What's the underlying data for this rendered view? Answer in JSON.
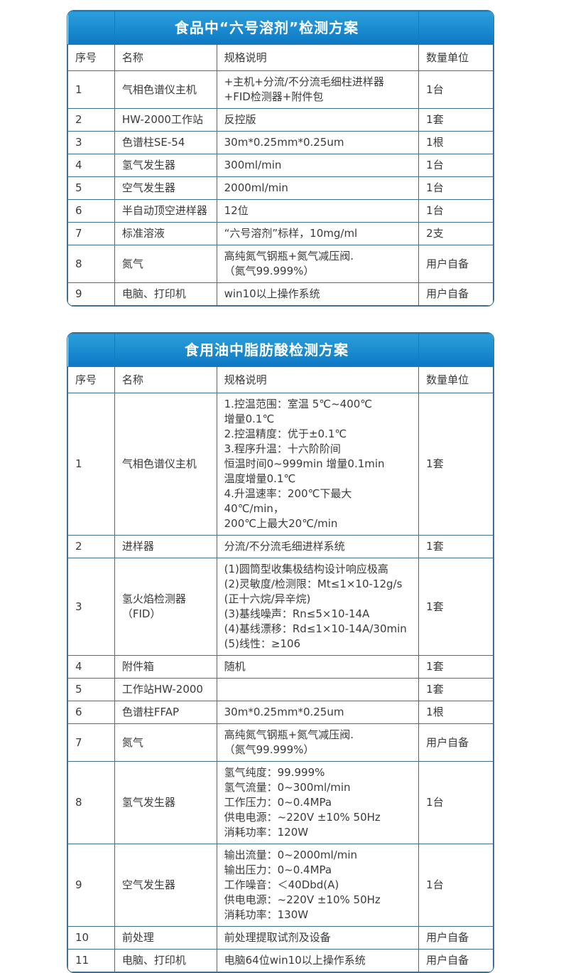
{
  "colors": {
    "header_blue_top": "#2b9fdc",
    "header_blue_bottom": "#0d78c4",
    "table_border": "#3c7191",
    "body_text": "#3a3a3a",
    "title_text": "#ffffff"
  },
  "tables": [
    {
      "title": "食品中“六号溶剂”检测方案",
      "columns": [
        "序号",
        "名称",
        "规格说明",
        "数量单位"
      ],
      "rows": [
        {
          "no": "1",
          "name": "气相色谱仪主机",
          "spec": "+主机+分流/不分流毛细柱进样器\n+FID检测器+附件包",
          "qty": "1台"
        },
        {
          "no": "2",
          "name": "HW-2000工作站",
          "spec": "反控版",
          "qty": "1套"
        },
        {
          "no": "3",
          "name": "色谱柱SE-54",
          "spec": "30m*0.25mm*0.25um",
          "qty": "1根"
        },
        {
          "no": "4",
          "name": "氢气发生器",
          "spec": "300ml/min",
          "qty": "1台"
        },
        {
          "no": "5",
          "name": "空气发生器",
          "spec": "2000ml/min",
          "qty": "1台"
        },
        {
          "no": "6",
          "name": "半自动顶空进样器",
          "spec": "12位",
          "qty": "1台"
        },
        {
          "no": "7",
          "name": "标准溶液",
          "spec": "“六号溶剂”标样，10mg/ml",
          "qty": "2支"
        },
        {
          "no": "8",
          "name": "氮气",
          "spec": "高纯氮气钢瓶+氮气减压阀.\n（氮气99.999%）",
          "qty": "用户自备"
        },
        {
          "no": "9",
          "name": "电脑、打印机",
          "spec": "win10以上操作系统",
          "qty": "用户自备"
        }
      ]
    },
    {
      "title": "食用油中脂肪酸检测方案",
      "columns": [
        "序号",
        "名称",
        "规格说明",
        "数量单位"
      ],
      "rows": [
        {
          "no": "1",
          "name": "气相色谱仪主机",
          "spec": "1.控温范围：室温 5℃~400℃\n增量0.1℃\n2.控温精度：优于±0.1℃\n3.程序升温：十六阶阶间\n恒温时间0~999min 增量0.1min\n温度增量0.1℃\n4.升温速率：200℃下最大40℃/min，\n200℃上最大20℃/min",
          "qty": "1套"
        },
        {
          "no": "2",
          "name": "进样器",
          "spec": "分流/不分流毛细进样系统",
          "qty": "1套"
        },
        {
          "no": "3",
          "name": "氢火焰检测器（FID）",
          "spec": "(1)圆筒型收集极结构设计响应极高\n(2)灵敏度/检测限：Mt≤1×10-12g/s\n(正十六烷/异辛烷)\n(3)基线噪声：Rn≤5×10-14A\n(4)基线漂移：Rd≤1×10-14A/30min\n(5)线性：≥106",
          "qty": "1套"
        },
        {
          "no": "4",
          "name": "附件箱",
          "spec": "随机",
          "qty": "1套"
        },
        {
          "no": "5",
          "name": "工作站HW-2000",
          "spec": "",
          "qty": "1套"
        },
        {
          "no": "6",
          "name": "色谱柱FFAP",
          "spec": "30m*0.25mm*0.25um",
          "qty": "1根"
        },
        {
          "no": "7",
          "name": "氮气",
          "spec": "高纯氮气钢瓶+氮气减压阀.\n（氮气99.999%）",
          "qty": "用户自备"
        },
        {
          "no": "8",
          "name": "氢气发生器",
          "spec": "氢气纯度：99.999%\n氢气流量：0~300ml/min\n工作压力：0~0.4MPa\n供电电源：~220V ±10% 50Hz\n消耗功率：120W",
          "qty": "1台"
        },
        {
          "no": "9",
          "name": "空气发生器",
          "spec": "输出流量：0~2000ml/min\n输出压力：0~0.4MPa\n工作噪音：＜40Dbd(A)\n供电电源：~220V ±10% 50Hz\n消耗功率：130W",
          "qty": "1台"
        },
        {
          "no": "10",
          "name": "前处理",
          "spec": "前处理提取试剂及设备",
          "qty": "用户自备"
        },
        {
          "no": "11",
          "name": "电脑、打印机",
          "spec": "电脑64位win10以上操作系统",
          "qty": "用户自备"
        }
      ]
    }
  ]
}
